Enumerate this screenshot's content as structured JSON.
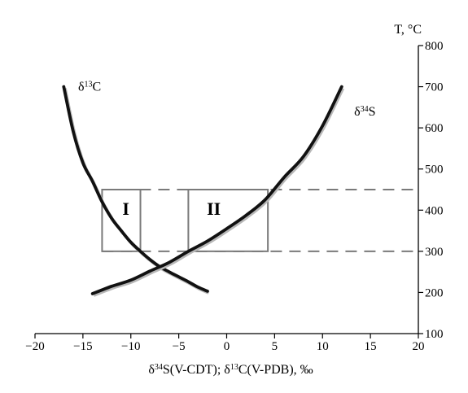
{
  "chart_data": {
    "type": "line",
    "title": "",
    "xlabel_parts": [
      "δ",
      "34",
      "S(V-CDT); δ",
      "13",
      "C(V-PDB), ‰"
    ],
    "ylabel": "T, °C",
    "xlim": [
      -20,
      20
    ],
    "ylim": [
      100,
      800
    ],
    "x_ticks": [
      -20,
      -15,
      -10,
      -5,
      0,
      5,
      10,
      15,
      20
    ],
    "x_tick_labels": [
      "−20",
      "−15",
      "−10",
      "−5",
      "0",
      "5",
      "10",
      "15",
      "20"
    ],
    "y_ticks": [
      100,
      200,
      300,
      400,
      500,
      600,
      700,
      800
    ],
    "y_tick_labels": [
      "100",
      "200",
      "300",
      "400",
      "500",
      "600",
      "700",
      "800"
    ],
    "grid": false,
    "series": [
      {
        "name_parts": [
          "δ",
          "13",
          "C"
        ],
        "color": "#111111",
        "points": [
          [
            -17,
            700
          ],
          [
            -16,
            590
          ],
          [
            -15,
            515
          ],
          [
            -14,
            470
          ],
          [
            -13,
            420
          ],
          [
            -12,
            380
          ],
          [
            -11,
            350
          ],
          [
            -10,
            322
          ],
          [
            -9,
            300
          ],
          [
            -8,
            280
          ],
          [
            -7,
            263
          ],
          [
            -6,
            250
          ],
          [
            -5,
            238
          ],
          [
            -4,
            226
          ],
          [
            -3,
            213
          ],
          [
            -2,
            203
          ]
        ]
      },
      {
        "name_parts": [
          "δ",
          "34",
          "S"
        ],
        "color": "#111111",
        "points": [
          [
            -14,
            197
          ],
          [
            -12,
            215
          ],
          [
            -10,
            230
          ],
          [
            -8,
            252
          ],
          [
            -6,
            273
          ],
          [
            -4,
            300
          ],
          [
            -2,
            325
          ],
          [
            0,
            355
          ],
          [
            2,
            387
          ],
          [
            4,
            425
          ],
          [
            6,
            480
          ],
          [
            8,
            530
          ],
          [
            10,
            605
          ],
          [
            12,
            700
          ]
        ]
      }
    ],
    "regions": [
      {
        "label": "I",
        "x": [
          -13,
          -9
        ],
        "y": [
          300,
          450
        ]
      },
      {
        "label": "II",
        "x": [
          -4,
          4.3
        ],
        "y": [
          300,
          450
        ]
      }
    ],
    "reference_lines_y": [
      300,
      450
    ],
    "colors": {
      "curve": "#111111",
      "region_box": "#7a7a7a",
      "dashed_line": "#7a7a7a",
      "axis": "#000000"
    }
  }
}
